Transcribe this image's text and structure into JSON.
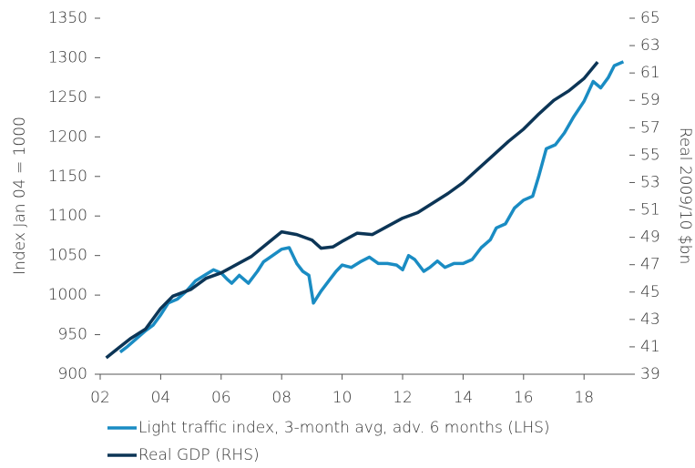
{
  "chart_data": {
    "type": "line",
    "y_label": "Index Jan 04 = 1000",
    "y2_label": "Real 2009/10 $bn",
    "xlim": [
      2002,
      2019.5
    ],
    "xticks": [
      {
        "value": 2002,
        "label": "02"
      },
      {
        "value": 2004,
        "label": "04"
      },
      {
        "value": 2006,
        "label": "06"
      },
      {
        "value": 2008,
        "label": "08"
      },
      {
        "value": 2010,
        "label": "10"
      },
      {
        "value": 2012,
        "label": "12"
      },
      {
        "value": 2014,
        "label": "14"
      },
      {
        "value": 2016,
        "label": "16"
      },
      {
        "value": 2018,
        "label": "18"
      }
    ],
    "ylim": [
      900,
      1350
    ],
    "yticks": [
      900,
      950,
      1000,
      1050,
      1100,
      1150,
      1200,
      1250,
      1300,
      1350
    ],
    "y2lim": [
      39,
      65
    ],
    "y2ticks": [
      39,
      41,
      43,
      45,
      47,
      49,
      51,
      53,
      55,
      57,
      59,
      61,
      63,
      65
    ],
    "series": [
      {
        "name": "Light traffic index, 3-month avg, adv. 6 months (LHS)",
        "color": "#1a8cc3",
        "axis": "y",
        "x": [
          2002.66,
          2002.9,
          2003.2,
          2003.5,
          2003.75,
          2004.0,
          2004.25,
          2004.55,
          2004.85,
          2005.15,
          2005.45,
          2005.75,
          2006.0,
          2006.2,
          2006.35,
          2006.6,
          2006.9,
          2007.2,
          2007.4,
          2007.7,
          2008.0,
          2008.25,
          2008.5,
          2008.7,
          2008.9,
          2009.05,
          2009.3,
          2009.6,
          2009.8,
          2010.0,
          2010.3,
          2010.6,
          2010.9,
          2011.2,
          2011.5,
          2011.8,
          2012.0,
          2012.2,
          2012.4,
          2012.7,
          2012.9,
          2013.15,
          2013.4,
          2013.7,
          2014.0,
          2014.3,
          2014.6,
          2014.9,
          2015.1,
          2015.4,
          2015.7,
          2016.0,
          2016.3,
          2016.5,
          2016.75,
          2017.05,
          2017.35,
          2017.65,
          2018.0,
          2018.3,
          2018.55,
          2018.8,
          2019.0,
          2019.3
        ],
        "values": [
          928,
          935,
          945,
          955,
          962,
          975,
          990,
          995,
          1005,
          1018,
          1025,
          1032,
          1028,
          1020,
          1015,
          1025,
          1015,
          1030,
          1042,
          1050,
          1058,
          1060,
          1040,
          1030,
          1025,
          990,
          1005,
          1020,
          1030,
          1038,
          1035,
          1042,
          1048,
          1040,
          1040,
          1038,
          1032,
          1050,
          1045,
          1030,
          1035,
          1043,
          1035,
          1040,
          1040,
          1045,
          1060,
          1070,
          1085,
          1090,
          1110,
          1120,
          1125,
          1150,
          1185,
          1190,
          1205,
          1225,
          1245,
          1270,
          1262,
          1275,
          1290,
          1295
        ]
      },
      {
        "name": "Real GDP (RHS)",
        "color": "#0c3556",
        "axis": "y2",
        "x": [
          2002.2,
          2002.6,
          2003.0,
          2003.5,
          2004.0,
          2004.4,
          2005.0,
          2005.5,
          2006.0,
          2006.5,
          2007.0,
          2007.5,
          2008.0,
          2008.5,
          2009.0,
          2009.3,
          2009.7,
          2010.0,
          2010.5,
          2011.0,
          2011.5,
          2012.0,
          2012.5,
          2013.0,
          2013.5,
          2014.0,
          2014.5,
          2015.0,
          2015.5,
          2016.0,
          2016.5,
          2017.0,
          2017.5,
          2018.0,
          2018.45
        ],
        "values": [
          40.2,
          40.9,
          41.6,
          42.3,
          43.8,
          44.7,
          45.2,
          46.0,
          46.4,
          47.0,
          47.6,
          48.5,
          49.4,
          49.2,
          48.8,
          48.2,
          48.3,
          48.7,
          49.3,
          49.2,
          49.8,
          50.4,
          50.8,
          51.5,
          52.2,
          53.0,
          54.0,
          55.0,
          56.0,
          56.9,
          58.0,
          59.0,
          59.7,
          60.6,
          61.8
        ]
      }
    ]
  }
}
